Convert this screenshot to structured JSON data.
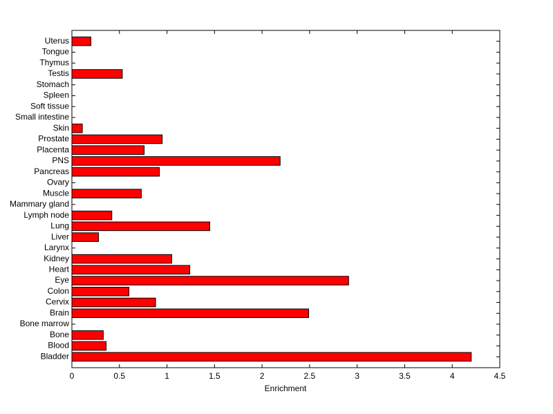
{
  "chart_data": {
    "type": "barh",
    "xlabel": "Enrichment",
    "categories": [
      "Bladder",
      "Blood",
      "Bone",
      "Bone marrow",
      "Brain",
      "Cervix",
      "Colon",
      "Eye",
      "Heart",
      "Kidney",
      "Larynx",
      "Liver",
      "Lung",
      "Lymph node",
      "Mammary gland",
      "Muscle",
      "Ovary",
      "Pancreas",
      "PNS",
      "Placenta",
      "Prostate",
      "Skin",
      "Small intestine",
      "Soft tissue",
      "Spleen",
      "Stomach",
      "Testis",
      "Thymus",
      "Tongue",
      "Uterus"
    ],
    "values": [
      4.2,
      0.36,
      0.33,
      0,
      2.49,
      0.88,
      0.6,
      2.91,
      1.24,
      1.05,
      0,
      0.28,
      1.45,
      0.42,
      0,
      0.73,
      0,
      0.92,
      2.19,
      0.76,
      0.95,
      0.11,
      0,
      0,
      0,
      0,
      0.53,
      0,
      0,
      0.2
    ],
    "color": "#ff0000",
    "xlim": [
      0,
      4.5
    ],
    "xticks": [
      0,
      0.5,
      1,
      1.5,
      2,
      2.5,
      3,
      3.5,
      4,
      4.5
    ],
    "grid": false
  }
}
